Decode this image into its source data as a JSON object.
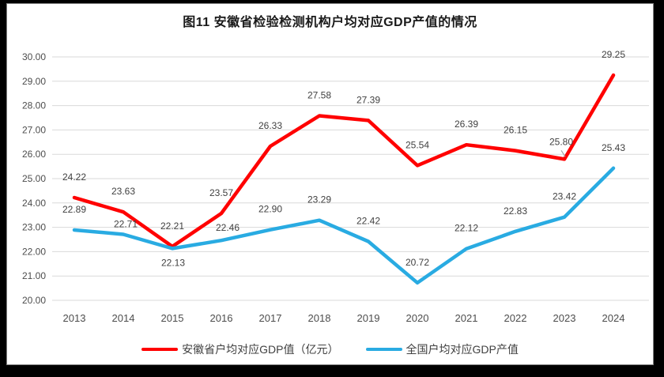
{
  "page": {
    "background_color": "#000000",
    "panel_color": "#ffffff",
    "panel_border_color": "#808080"
  },
  "chart_data": {
    "type": "line",
    "title": "图11 安徽省检验检测机构户均对应GDP产值的情况",
    "categories": [
      "2013",
      "2014",
      "2015",
      "2016",
      "2017",
      "2018",
      "2019",
      "2020",
      "2021",
      "2022",
      "2023",
      "2024"
    ],
    "series": [
      {
        "name": "安徽省户均对应GDP值（亿元）",
        "color": "#FF0000",
        "values": [
          24.22,
          23.63,
          22.21,
          23.57,
          26.33,
          27.58,
          27.39,
          25.54,
          26.39,
          26.15,
          25.8,
          29.25
        ],
        "label_offsets": {
          "10": [
            -4,
            -18
          ]
        },
        "callout_index": 10
      },
      {
        "name": "全国户均对应GDP产值",
        "color": "#29ABE2",
        "values": [
          22.89,
          22.71,
          22.13,
          22.46,
          22.9,
          23.29,
          22.42,
          20.72,
          22.12,
          22.83,
          23.42,
          25.43
        ],
        "label_offsets": {
          "1": [
            3,
            -9
          ],
          "2": [
            1,
            22
          ],
          "3": [
            8,
            -12
          ]
        }
      }
    ],
    "ylim": [
      20,
      30
    ],
    "ytick_step": 1,
    "y_ticks": [
      "30.00",
      "29.00",
      "28.00",
      "27.00",
      "26.00",
      "25.00",
      "24.00",
      "23.00",
      "22.00",
      "21.00",
      "20.00"
    ],
    "value_decimals": 2,
    "grid": true,
    "gridline_color": "#D9D9D9",
    "axis_text_color": "#4d4d4d",
    "data_label_color": "#404040",
    "callout_line_color": "#A6A6A6",
    "legend_position": "bottom",
    "xlabel": "",
    "ylabel": ""
  }
}
